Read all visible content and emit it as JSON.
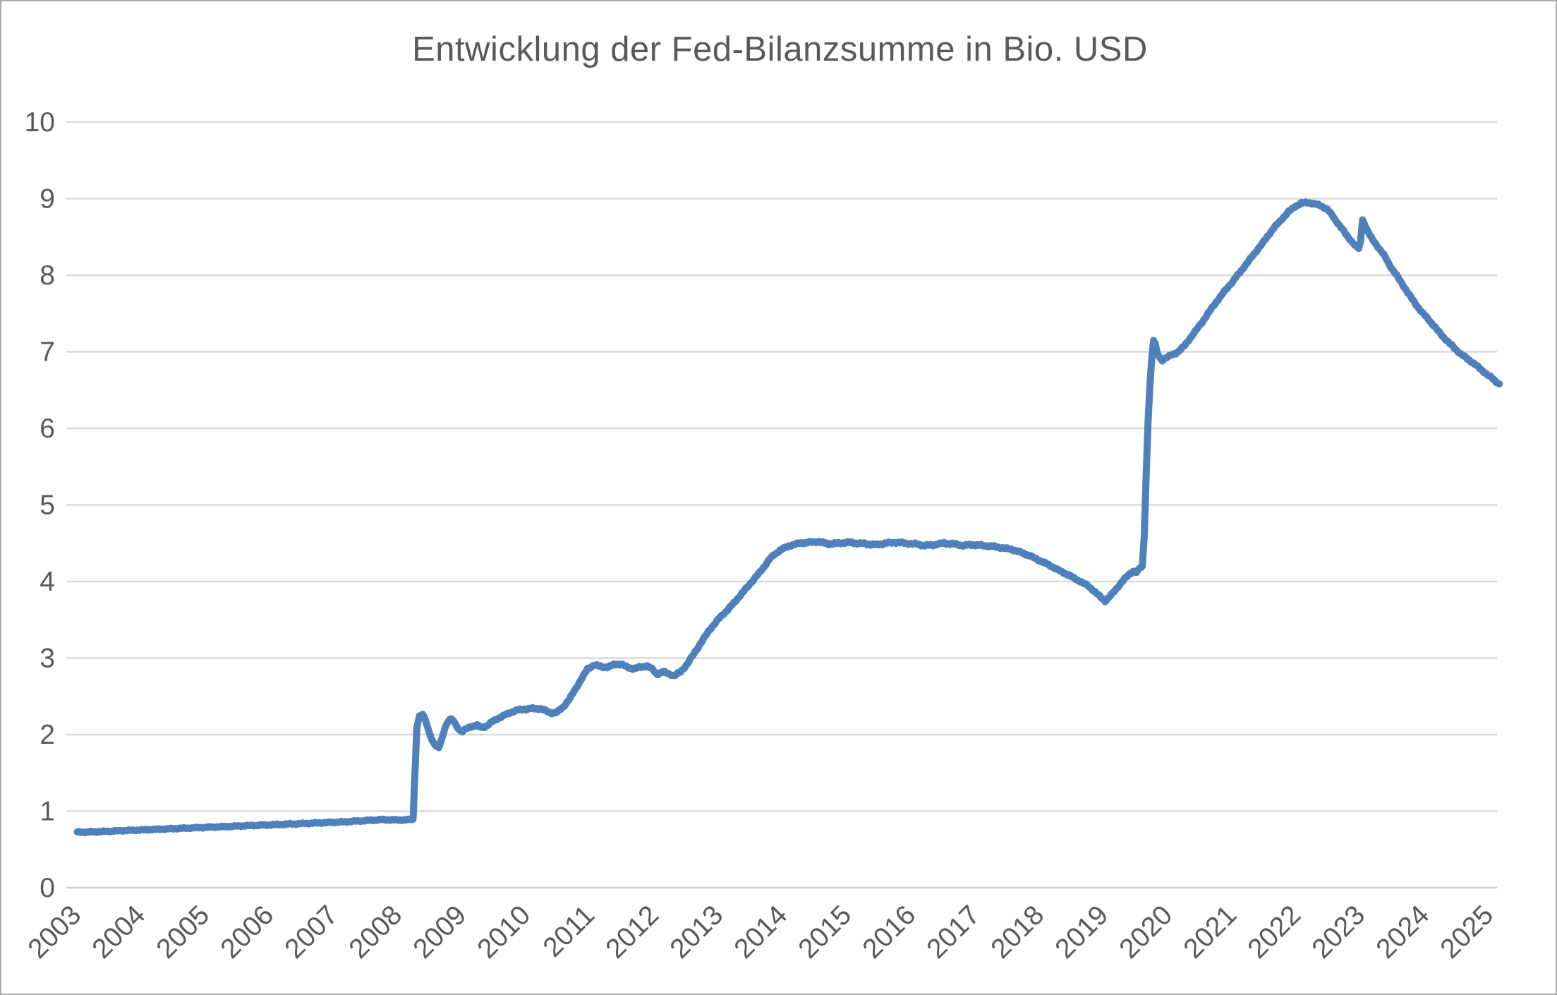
{
  "title": "Entwicklung der Fed-Bilanzsumme in Bio. USD",
  "colors": {
    "line": "#4e80bc",
    "gridline": "#d9d9d9",
    "zero_line": "#d0d0d0",
    "tick_text": "#595959",
    "title_text": "#595959",
    "background": "#ffffff",
    "frame_border": "#ababab"
  },
  "chart_data": {
    "type": "line",
    "title": "Entwicklung der Fed-Bilanzsumme in Bio. USD",
    "xlabel": "",
    "ylabel": "",
    "legend": "none",
    "grid": "horizontal",
    "ylim": [
      0,
      10
    ],
    "xlim": [
      2003,
      2025.6
    ],
    "y_ticks": [
      0,
      1,
      2,
      3,
      4,
      5,
      6,
      7,
      8,
      9,
      10
    ],
    "x_ticks": [
      "2003",
      "2004",
      "2005",
      "2006",
      "2007",
      "2008",
      "2009",
      "2010",
      "2011",
      "2012",
      "2013",
      "2014",
      "2015",
      "2016",
      "2017",
      "2018",
      "2019",
      "2020",
      "2021",
      "2022",
      "2023",
      "2024",
      "2025"
    ],
    "series": [
      {
        "name": "Fed-Bilanzsumme",
        "points": [
          [
            2003.05,
            0.725
          ],
          [
            2003.3,
            0.73
          ],
          [
            2003.6,
            0.74
          ],
          [
            2003.9,
            0.75
          ],
          [
            2004.2,
            0.76
          ],
          [
            2004.5,
            0.77
          ],
          [
            2004.8,
            0.78
          ],
          [
            2005.1,
            0.79
          ],
          [
            2005.4,
            0.8
          ],
          [
            2005.7,
            0.81
          ],
          [
            2006.0,
            0.82
          ],
          [
            2006.3,
            0.83
          ],
          [
            2006.6,
            0.84
          ],
          [
            2006.9,
            0.85
          ],
          [
            2007.2,
            0.86
          ],
          [
            2007.5,
            0.875
          ],
          [
            2007.8,
            0.89
          ],
          [
            2008.0,
            0.885
          ],
          [
            2008.15,
            0.885
          ],
          [
            2008.28,
            0.895
          ],
          [
            2008.31,
            1.5
          ],
          [
            2008.34,
            2.1
          ],
          [
            2008.38,
            2.24
          ],
          [
            2008.43,
            2.26
          ],
          [
            2008.47,
            2.2
          ],
          [
            2008.52,
            2.06
          ],
          [
            2008.58,
            1.92
          ],
          [
            2008.64,
            1.84
          ],
          [
            2008.68,
            1.83
          ],
          [
            2008.73,
            1.95
          ],
          [
            2008.78,
            2.1
          ],
          [
            2008.84,
            2.19
          ],
          [
            2008.89,
            2.2
          ],
          [
            2008.94,
            2.14
          ],
          [
            2009.0,
            2.06
          ],
          [
            2009.05,
            2.04
          ],
          [
            2009.12,
            2.08
          ],
          [
            2009.2,
            2.11
          ],
          [
            2009.28,
            2.12
          ],
          [
            2009.35,
            2.09
          ],
          [
            2009.42,
            2.11
          ],
          [
            2009.5,
            2.16
          ],
          [
            2009.6,
            2.21
          ],
          [
            2009.7,
            2.25
          ],
          [
            2009.8,
            2.29
          ],
          [
            2009.9,
            2.32
          ],
          [
            2010.0,
            2.33
          ],
          [
            2010.12,
            2.34
          ],
          [
            2010.25,
            2.34
          ],
          [
            2010.35,
            2.31
          ],
          [
            2010.45,
            2.28
          ],
          [
            2010.52,
            2.29
          ],
          [
            2010.62,
            2.36
          ],
          [
            2010.72,
            2.47
          ],
          [
            2010.82,
            2.61
          ],
          [
            2010.92,
            2.75
          ],
          [
            2011.0,
            2.86
          ],
          [
            2011.1,
            2.91
          ],
          [
            2011.2,
            2.89
          ],
          [
            2011.32,
            2.88
          ],
          [
            2011.42,
            2.92
          ],
          [
            2011.52,
            2.92
          ],
          [
            2011.62,
            2.88
          ],
          [
            2011.72,
            2.86
          ],
          [
            2011.82,
            2.88
          ],
          [
            2011.92,
            2.9
          ],
          [
            2012.0,
            2.86
          ],
          [
            2012.08,
            2.79
          ],
          [
            2012.18,
            2.82
          ],
          [
            2012.28,
            2.79
          ],
          [
            2012.35,
            2.77
          ],
          [
            2012.45,
            2.82
          ],
          [
            2012.55,
            2.92
          ],
          [
            2012.65,
            3.05
          ],
          [
            2012.78,
            3.22
          ],
          [
            2012.9,
            3.37
          ],
          [
            2013.05,
            3.52
          ],
          [
            2013.18,
            3.63
          ],
          [
            2013.3,
            3.74
          ],
          [
            2013.45,
            3.89
          ],
          [
            2013.6,
            4.04
          ],
          [
            2013.72,
            4.16
          ],
          [
            2013.85,
            4.31
          ],
          [
            2014.0,
            4.41
          ],
          [
            2014.15,
            4.47
          ],
          [
            2014.3,
            4.5
          ],
          [
            2014.45,
            4.51
          ],
          [
            2014.6,
            4.52
          ],
          [
            2014.75,
            4.49
          ],
          [
            2014.9,
            4.5
          ],
          [
            2015.05,
            4.51
          ],
          [
            2015.2,
            4.5
          ],
          [
            2015.35,
            4.49
          ],
          [
            2015.5,
            4.48
          ],
          [
            2015.65,
            4.5
          ],
          [
            2015.8,
            4.51
          ],
          [
            2015.95,
            4.5
          ],
          [
            2016.1,
            4.49
          ],
          [
            2016.25,
            4.47
          ],
          [
            2016.4,
            4.48
          ],
          [
            2016.55,
            4.5
          ],
          [
            2016.7,
            4.49
          ],
          [
            2016.85,
            4.47
          ],
          [
            2017.0,
            4.48
          ],
          [
            2017.15,
            4.47
          ],
          [
            2017.3,
            4.46
          ],
          [
            2017.45,
            4.44
          ],
          [
            2017.6,
            4.42
          ],
          [
            2017.75,
            4.38
          ],
          [
            2017.9,
            4.33
          ],
          [
            2018.05,
            4.27
          ],
          [
            2018.2,
            4.21
          ],
          [
            2018.35,
            4.14
          ],
          [
            2018.5,
            4.08
          ],
          [
            2018.65,
            4.01
          ],
          [
            2018.8,
            3.94
          ],
          [
            2018.92,
            3.85
          ],
          [
            2019.0,
            3.79
          ],
          [
            2019.06,
            3.745
          ],
          [
            2019.12,
            3.79
          ],
          [
            2019.2,
            3.87
          ],
          [
            2019.28,
            3.95
          ],
          [
            2019.36,
            4.03
          ],
          [
            2019.44,
            4.1
          ],
          [
            2019.5,
            4.13
          ],
          [
            2019.55,
            4.12
          ],
          [
            2019.6,
            4.17
          ],
          [
            2019.64,
            4.2
          ],
          [
            2019.67,
            4.6
          ],
          [
            2019.7,
            5.4
          ],
          [
            2019.73,
            6.1
          ],
          [
            2019.76,
            6.6
          ],
          [
            2019.79,
            6.95
          ],
          [
            2019.815,
            7.15
          ],
          [
            2019.84,
            7.1
          ],
          [
            2019.87,
            6.99
          ],
          [
            2019.91,
            6.92
          ],
          [
            2019.95,
            6.89
          ],
          [
            2020.0,
            6.92
          ],
          [
            2020.08,
            6.95
          ],
          [
            2020.18,
            6.99
          ],
          [
            2020.3,
            7.08
          ],
          [
            2020.42,
            7.22
          ],
          [
            2020.55,
            7.36
          ],
          [
            2020.68,
            7.52
          ],
          [
            2020.8,
            7.66
          ],
          [
            2020.92,
            7.79
          ],
          [
            2021.05,
            7.92
          ],
          [
            2021.18,
            8.06
          ],
          [
            2021.3,
            8.19
          ],
          [
            2021.42,
            8.32
          ],
          [
            2021.55,
            8.46
          ],
          [
            2021.68,
            8.61
          ],
          [
            2021.8,
            8.72
          ],
          [
            2021.92,
            8.83
          ],
          [
            2022.02,
            8.9
          ],
          [
            2022.12,
            8.94
          ],
          [
            2022.22,
            8.95
          ],
          [
            2022.32,
            8.93
          ],
          [
            2022.42,
            8.91
          ],
          [
            2022.52,
            8.86
          ],
          [
            2022.6,
            8.78
          ],
          [
            2022.7,
            8.66
          ],
          [
            2022.8,
            8.55
          ],
          [
            2022.9,
            8.44
          ],
          [
            2022.97,
            8.37
          ],
          [
            2023.01,
            8.35
          ],
          [
            2023.04,
            8.45
          ],
          [
            2023.07,
            8.72
          ],
          [
            2023.1,
            8.67
          ],
          [
            2023.16,
            8.56
          ],
          [
            2023.22,
            8.47
          ],
          [
            2023.3,
            8.38
          ],
          [
            2023.4,
            8.27
          ],
          [
            2023.5,
            8.12
          ],
          [
            2023.6,
            8.0
          ],
          [
            2023.7,
            7.87
          ],
          [
            2023.8,
            7.74
          ],
          [
            2023.9,
            7.62
          ],
          [
            2024.0,
            7.51
          ],
          [
            2024.1,
            7.42
          ],
          [
            2024.2,
            7.32
          ],
          [
            2024.3,
            7.22
          ],
          [
            2024.4,
            7.13
          ],
          [
            2024.5,
            7.05
          ],
          [
            2024.6,
            6.97
          ],
          [
            2024.7,
            6.91
          ],
          [
            2024.8,
            6.85
          ],
          [
            2024.9,
            6.78
          ],
          [
            2025.0,
            6.71
          ],
          [
            2025.08,
            6.66
          ],
          [
            2025.15,
            6.61
          ],
          [
            2025.2,
            6.58
          ]
        ]
      }
    ]
  }
}
